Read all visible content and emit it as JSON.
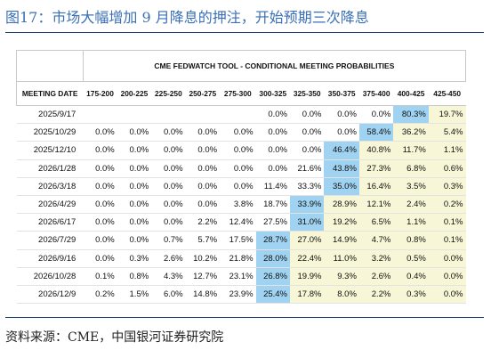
{
  "figure_title": "图17：市场大幅增加 9 月降息的押注，开始预期三次降息",
  "source": "资料来源：CME，中国银河证券研究院",
  "table": {
    "tool_title": "CME FEDWATCH TOOL - CONDITIONAL MEETING PROBABILITIES",
    "columns": [
      "MEETING DATE",
      "175-200",
      "200-225",
      "225-250",
      "250-275",
      "275-300",
      "300-325",
      "325-350",
      "350-375",
      "375-400",
      "400-425",
      "425-450"
    ],
    "rows": [
      {
        "date": "2025/9/17",
        "values": [
          "",
          "",
          "",
          "",
          "",
          "0.0%",
          "0.0%",
          "0.0%",
          "0.0%",
          "80.3%",
          "19.7%"
        ]
      },
      {
        "date": "2025/10/29",
        "values": [
          "0.0%",
          "0.0%",
          "0.0%",
          "0.0%",
          "0.0%",
          "0.0%",
          "0.0%",
          "0.0%",
          "58.4%",
          "36.2%",
          "5.4%"
        ]
      },
      {
        "date": "2025/12/10",
        "values": [
          "0.0%",
          "0.0%",
          "0.0%",
          "0.0%",
          "0.0%",
          "0.0%",
          "0.0%",
          "46.4%",
          "40.8%",
          "11.7%",
          "1.1%"
        ]
      },
      {
        "date": "2026/1/28",
        "values": [
          "0.0%",
          "0.0%",
          "0.0%",
          "0.0%",
          "0.0%",
          "0.0%",
          "21.6%",
          "43.8%",
          "27.3%",
          "6.8%",
          "0.6%"
        ]
      },
      {
        "date": "2026/3/18",
        "values": [
          "0.0%",
          "0.0%",
          "0.0%",
          "0.0%",
          "0.0%",
          "11.4%",
          "33.3%",
          "35.0%",
          "16.4%",
          "3.5%",
          "0.3%"
        ]
      },
      {
        "date": "2026/4/29",
        "values": [
          "0.0%",
          "0.0%",
          "0.0%",
          "0.0%",
          "3.8%",
          "18.7%",
          "33.9%",
          "28.9%",
          "12.1%",
          "2.4%",
          "0.2%"
        ]
      },
      {
        "date": "2026/6/17",
        "values": [
          "0.0%",
          "0.0%",
          "0.0%",
          "2.2%",
          "12.4%",
          "27.5%",
          "31.0%",
          "19.2%",
          "6.5%",
          "1.1%",
          "0.1%"
        ]
      },
      {
        "date": "2026/7/29",
        "values": [
          "0.0%",
          "0.0%",
          "0.7%",
          "5.7%",
          "17.5%",
          "28.7%",
          "27.0%",
          "14.9%",
          "4.7%",
          "0.8%",
          "0.1%"
        ]
      },
      {
        "date": "2026/9/16",
        "values": [
          "0.0%",
          "0.3%",
          "2.6%",
          "10.2%",
          "21.8%",
          "28.0%",
          "22.4%",
          "11.0%",
          "3.2%",
          "0.5%",
          "0.0%"
        ]
      },
      {
        "date": "2026/10/28",
        "values": [
          "0.1%",
          "0.8%",
          "4.3%",
          "12.7%",
          "23.1%",
          "26.8%",
          "19.9%",
          "9.3%",
          "2.6%",
          "0.4%",
          "0.0%"
        ]
      },
      {
        "date": "2026/12/9",
        "values": [
          "0.2%",
          "1.5%",
          "6.0%",
          "14.8%",
          "23.9%",
          "25.4%",
          "17.8%",
          "8.0%",
          "2.2%",
          "0.3%",
          "0.0%"
        ]
      }
    ],
    "highlight": {
      "colors": {
        "max": "#9fd3f1",
        "yellow": "#f7f6d6"
      },
      "max_cells": [
        [
          0,
          9
        ],
        [
          1,
          8
        ],
        [
          2,
          7
        ],
        [
          3,
          7
        ],
        [
          4,
          7
        ],
        [
          5,
          6
        ],
        [
          6,
          6
        ],
        [
          7,
          5
        ],
        [
          8,
          5
        ],
        [
          9,
          5
        ],
        [
          10,
          5
        ]
      ],
      "yellow_cols_from": 5
    }
  }
}
